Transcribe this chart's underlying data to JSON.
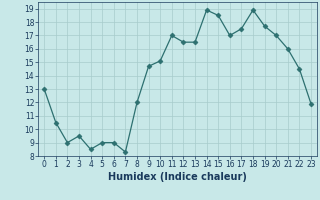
{
  "x": [
    0,
    1,
    2,
    3,
    4,
    5,
    6,
    7,
    8,
    9,
    10,
    11,
    12,
    13,
    14,
    15,
    16,
    17,
    18,
    19,
    20,
    21,
    22,
    23
  ],
  "y": [
    13,
    10.5,
    9,
    9.5,
    8.5,
    9,
    9,
    8.3,
    12,
    14.7,
    15.1,
    17,
    16.5,
    16.5,
    18.9,
    18.5,
    17,
    17.5,
    18.9,
    17.7,
    17,
    16,
    14.5,
    11.9
  ],
  "xlabel": "Humidex (Indice chaleur)",
  "line_color": "#2d7070",
  "marker": "D",
  "marker_size": 2.5,
  "bg_color": "#c8e8e8",
  "grid_color": "#a8cccc",
  "ylim": [
    8,
    19.5
  ],
  "xlim": [
    -0.5,
    23.5
  ],
  "yticks": [
    8,
    9,
    10,
    11,
    12,
    13,
    14,
    15,
    16,
    17,
    18,
    19
  ],
  "xticks": [
    0,
    1,
    2,
    3,
    4,
    5,
    6,
    7,
    8,
    9,
    10,
    11,
    12,
    13,
    14,
    15,
    16,
    17,
    18,
    19,
    20,
    21,
    22,
    23
  ],
  "tick_label_size": 5.5,
  "xlabel_size": 7,
  "xlabel_color": "#1a3a5c",
  "tick_color": "#1a3a5c"
}
